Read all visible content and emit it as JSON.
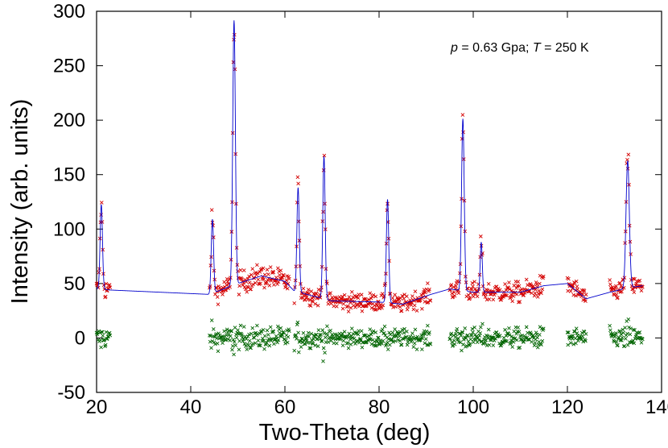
{
  "chart_data": {
    "type": "scatter",
    "title": "",
    "xlabel": "Two-Theta (deg)",
    "ylabel": "Intensity (arb. units)",
    "xlim": [
      20,
      140
    ],
    "ylim": [
      -50,
      300
    ],
    "xticks": [
      "20",
      "40",
      "60",
      "80",
      "100",
      "120",
      "140"
    ],
    "yticks": [
      "-50",
      "0",
      "50",
      "100",
      "150",
      "200",
      "250",
      "300"
    ],
    "annotation": {
      "p_symbol": "p",
      "p_text": " = 0.63 Gpa; ",
      "t_symbol": "T",
      "t_text": " = 250 K"
    },
    "colors": {
      "observed": "#d40000",
      "calculated": "#0000cc",
      "difference": "#006400"
    },
    "ranges": [
      [
        20,
        23
      ],
      [
        44,
        61
      ],
      [
        62,
        91
      ],
      [
        95,
        115
      ],
      [
        120,
        124
      ],
      [
        129,
        136
      ]
    ],
    "background": [
      [
        20,
        45
      ],
      [
        23,
        44
      ],
      [
        44,
        40
      ],
      [
        50,
        50
      ],
      [
        55,
        57
      ],
      [
        60,
        52
      ],
      [
        62,
        43
      ],
      [
        70,
        34
      ],
      [
        80,
        33
      ],
      [
        85,
        31
      ],
      [
        91,
        40
      ],
      [
        95,
        45
      ],
      [
        100,
        42
      ],
      [
        110,
        42
      ],
      [
        115,
        48
      ],
      [
        120,
        50
      ],
      [
        124,
        36
      ],
      [
        129,
        42
      ],
      [
        133,
        46
      ],
      [
        136,
        48
      ]
    ],
    "peaks": [
      [
        21,
        78,
        0.25
      ],
      [
        44.6,
        68,
        0.25
      ],
      [
        49.2,
        243,
        0.28
      ],
      [
        62.8,
        96,
        0.25
      ],
      [
        68.3,
        131,
        0.25
      ],
      [
        81.8,
        95,
        0.25
      ],
      [
        97.8,
        158,
        0.28
      ],
      [
        101.7,
        46,
        0.22
      ],
      [
        132.8,
        117,
        0.35
      ]
    ],
    "series": [
      {
        "name": "observed"
      },
      {
        "name": "calculated"
      },
      {
        "name": "difference"
      }
    ]
  }
}
